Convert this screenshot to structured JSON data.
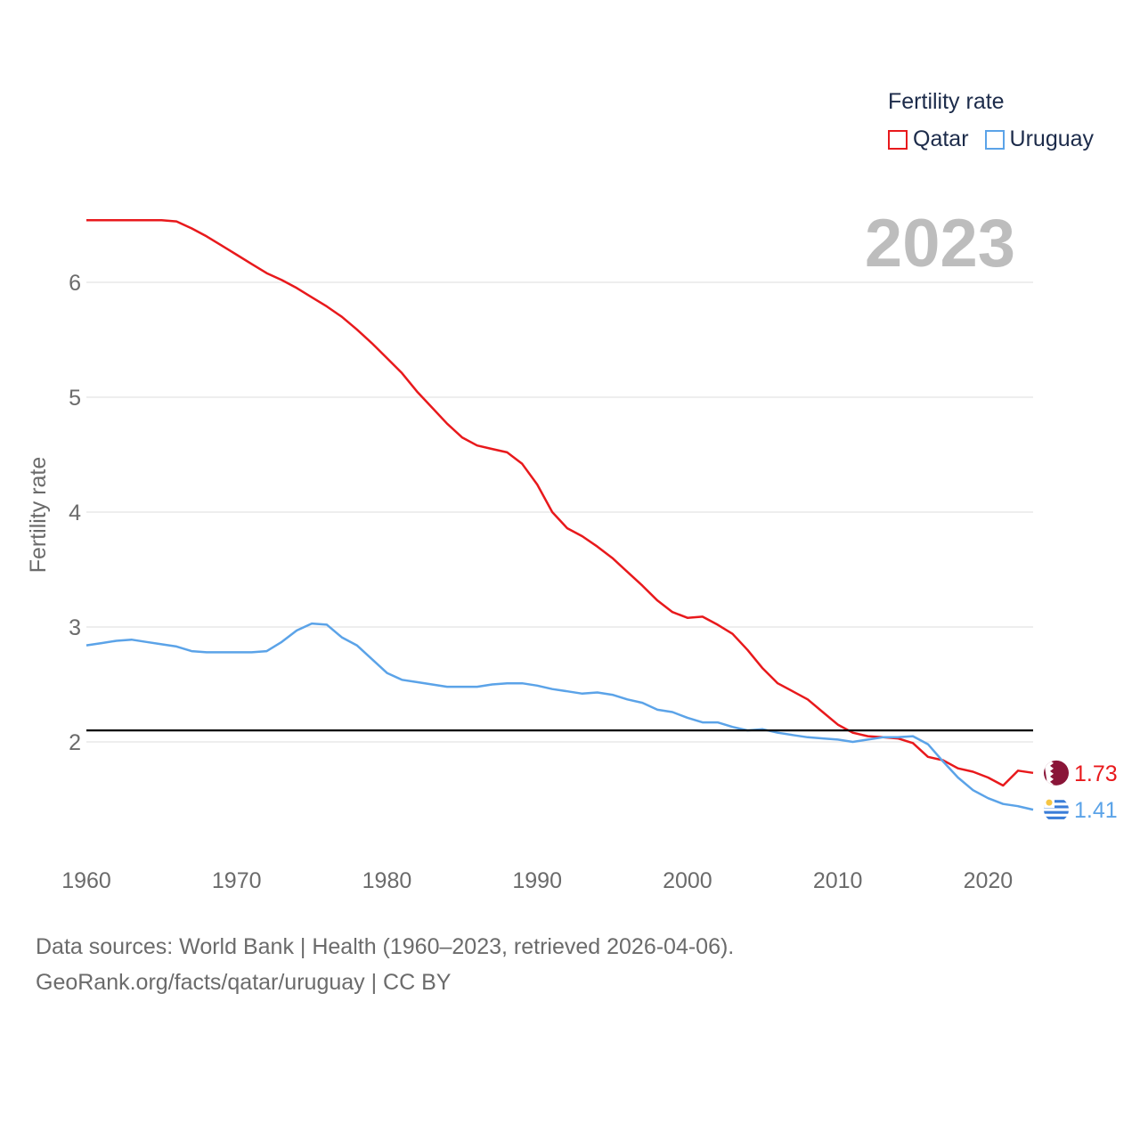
{
  "legend": {
    "title": "Fertility rate",
    "items": [
      {
        "label": "Qatar",
        "color": "#e8191c"
      },
      {
        "label": "Uruguay",
        "color": "#5ba3e8"
      }
    ]
  },
  "footer": {
    "line1": "Data sources: World Bank | Health (1960–2023, retrieved 2026-04-06).",
    "line2": "GeoRank.org/facts/qatar/uruguay | CC BY"
  },
  "colors": {
    "qatar": "#e8191c",
    "uruguay": "#5ba3e8",
    "grid": "#e3e3e3",
    "axis_text": "#6b6b6b",
    "year_watermark": "#bdbdbd",
    "reference_line": "#000000",
    "qatar_flag": "#8a1538"
  },
  "chart_data": {
    "type": "line",
    "title": "",
    "year_label": "2023",
    "xlabel": "",
    "ylabel": "Fertility rate",
    "xlim": [
      1960,
      2023
    ],
    "ylim": [
      1.0,
      6.6
    ],
    "x_ticks": [
      1960,
      1970,
      1980,
      1990,
      2000,
      2010,
      2020
    ],
    "y_ticks": [
      2,
      3,
      4,
      5,
      6
    ],
    "reference_line": 2.1,
    "grid": true,
    "legend_position": "top-right",
    "x": [
      1960,
      1961,
      1962,
      1963,
      1964,
      1965,
      1966,
      1967,
      1968,
      1969,
      1970,
      1971,
      1972,
      1973,
      1974,
      1975,
      1976,
      1977,
      1978,
      1979,
      1980,
      1981,
      1982,
      1983,
      1984,
      1985,
      1986,
      1987,
      1988,
      1989,
      1990,
      1991,
      1992,
      1993,
      1994,
      1995,
      1996,
      1997,
      1998,
      1999,
      2000,
      2001,
      2002,
      2003,
      2004,
      2005,
      2006,
      2007,
      2008,
      2009,
      2010,
      2011,
      2012,
      2013,
      2014,
      2015,
      2016,
      2017,
      2018,
      2019,
      2020,
      2021,
      2022,
      2023
    ],
    "series": [
      {
        "name": "Qatar",
        "end_label": "1.73",
        "values": [
          6.54,
          6.54,
          6.54,
          6.54,
          6.54,
          6.54,
          6.53,
          6.47,
          6.4,
          6.32,
          6.24,
          6.16,
          6.08,
          6.02,
          5.95,
          5.87,
          5.79,
          5.7,
          5.59,
          5.47,
          5.34,
          5.21,
          5.05,
          4.91,
          4.77,
          4.65,
          4.58,
          4.55,
          4.52,
          4.42,
          4.24,
          4.0,
          3.86,
          3.79,
          3.7,
          3.6,
          3.48,
          3.36,
          3.23,
          3.13,
          3.08,
          3.09,
          3.02,
          2.94,
          2.8,
          2.64,
          2.51,
          2.44,
          2.37,
          2.26,
          2.15,
          2.08,
          2.05,
          2.04,
          2.03,
          1.99,
          1.87,
          1.84,
          1.77,
          1.74,
          1.69,
          1.62,
          1.75,
          1.73
        ]
      },
      {
        "name": "Uruguay",
        "end_label": "1.41",
        "values": [
          2.84,
          2.86,
          2.88,
          2.89,
          2.87,
          2.85,
          2.83,
          2.79,
          2.78,
          2.78,
          2.78,
          2.78,
          2.79,
          2.87,
          2.97,
          3.03,
          3.02,
          2.91,
          2.84,
          2.72,
          2.6,
          2.54,
          2.52,
          2.5,
          2.48,
          2.48,
          2.48,
          2.5,
          2.51,
          2.51,
          2.49,
          2.46,
          2.44,
          2.42,
          2.43,
          2.41,
          2.37,
          2.34,
          2.28,
          2.26,
          2.21,
          2.17,
          2.17,
          2.13,
          2.1,
          2.11,
          2.08,
          2.06,
          2.04,
          2.03,
          2.02,
          2.0,
          2.02,
          2.04,
          2.04,
          2.05,
          1.98,
          1.83,
          1.69,
          1.58,
          1.51,
          1.46,
          1.44,
          1.41
        ]
      }
    ]
  }
}
